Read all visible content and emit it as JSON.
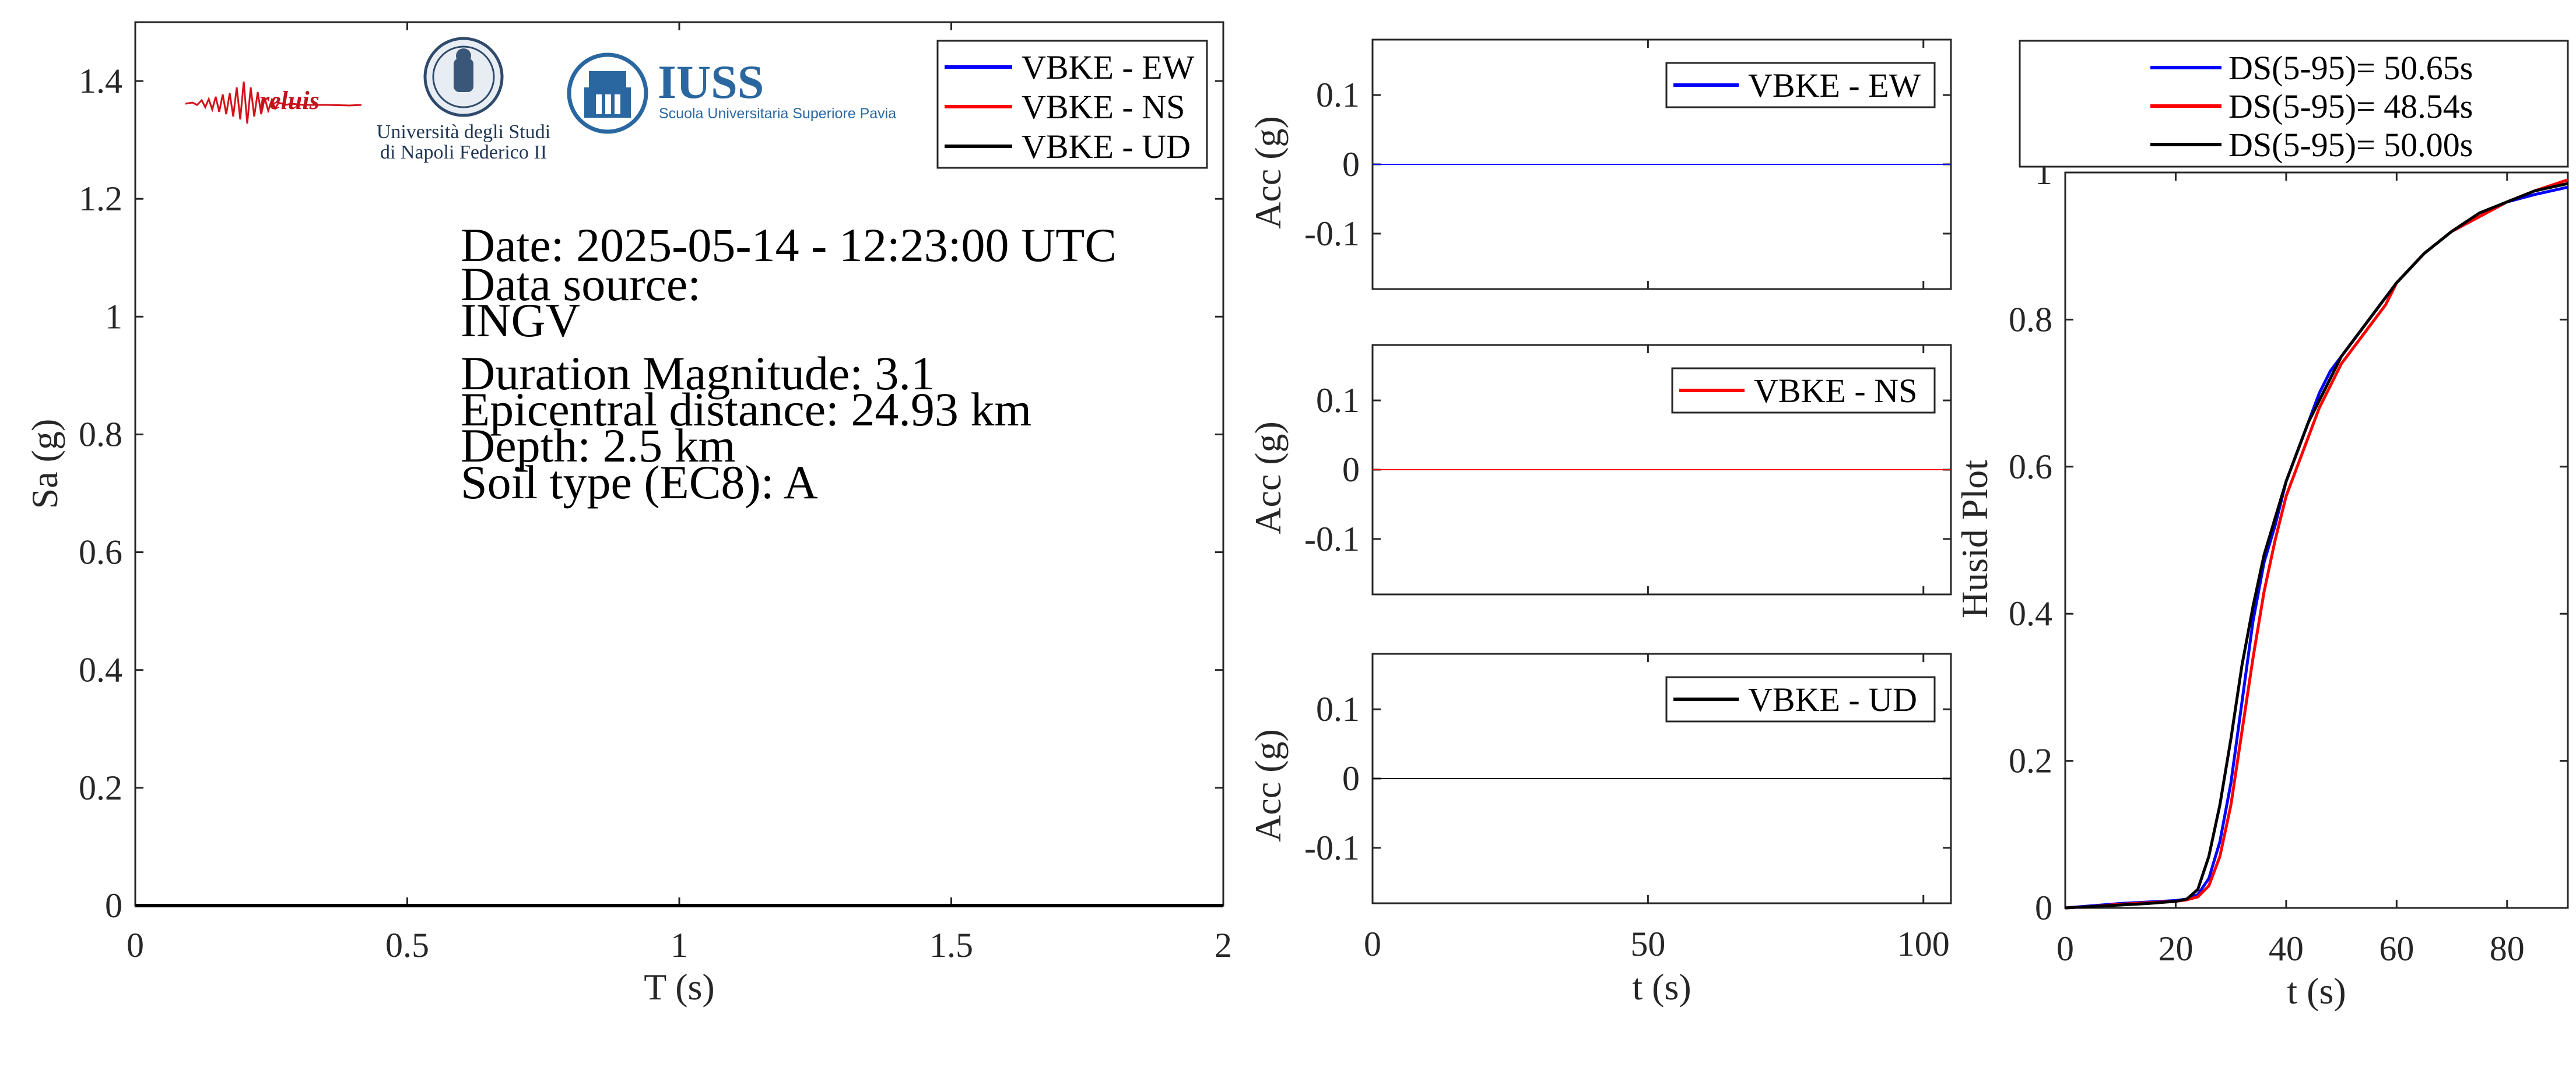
{
  "info": {
    "lines": [
      "Date: 2025-05-14 - 12:23:00 UTC",
      "Data source:",
      "INGV",
      "Duration Magnitude: 3.1",
      "Epicentral distance: 24.93 km",
      "Depth: 2.5 km",
      "Soil type (EC8): A"
    ]
  },
  "logos": {
    "reluis": "reluis",
    "unina_line1": "Università degli Studi",
    "unina_line2": "di Napoli Federico II",
    "iuss": "IUSS",
    "iuss_sub": "Scuola Universitaria Superiore Pavia"
  },
  "colors": {
    "ew": "#0000ff",
    "ns": "#ff0000",
    "ud": "#000000"
  },
  "chart_data": [
    {
      "id": "spectrum",
      "type": "line",
      "xlabel": "T (s)",
      "ylabel": "Sa (g)",
      "xlim": [
        0,
        2
      ],
      "ylim": [
        0,
        1.5
      ],
      "xticks": [
        0,
        0.5,
        1,
        1.5,
        2
      ],
      "yticks": [
        0,
        0.2,
        0.4,
        0.6,
        0.8,
        1,
        1.2,
        1.4
      ],
      "legend": "top-right",
      "series": [
        {
          "name": "VBKE - EW",
          "color": "#0000ff",
          "x": [
            0,
            2
          ],
          "y": [
            0,
            0
          ]
        },
        {
          "name": "VBKE - NS",
          "color": "#ff0000",
          "x": [
            0,
            2
          ],
          "y": [
            0,
            0
          ]
        },
        {
          "name": "VBKE - UD",
          "color": "#000000",
          "x": [
            0,
            2
          ],
          "y": [
            0,
            0
          ]
        }
      ]
    },
    {
      "id": "acc_ew",
      "type": "line",
      "ylabel": "Acc (g)",
      "xlim": [
        0,
        105
      ],
      "ylim": [
        -0.18,
        0.18
      ],
      "yticks": [
        -0.1,
        0,
        0.1
      ],
      "legend": "top-right",
      "series": [
        {
          "name": "VBKE - EW",
          "color": "#0000ff",
          "x": [
            0,
            105
          ],
          "y": [
            0,
            0
          ]
        }
      ]
    },
    {
      "id": "acc_ns",
      "type": "line",
      "ylabel": "Acc (g)",
      "xlim": [
        0,
        105
      ],
      "ylim": [
        -0.18,
        0.18
      ],
      "yticks": [
        -0.1,
        0,
        0.1
      ],
      "legend": "top-right",
      "series": [
        {
          "name": "VBKE - NS",
          "color": "#ff0000",
          "x": [
            0,
            105
          ],
          "y": [
            0,
            0
          ]
        }
      ]
    },
    {
      "id": "acc_ud",
      "type": "line",
      "xlabel": "t (s)",
      "ylabel": "Acc (g)",
      "xlim": [
        0,
        105
      ],
      "ylim": [
        -0.18,
        0.18
      ],
      "xticks": [
        0,
        50,
        100
      ],
      "yticks": [
        -0.1,
        0,
        0.1
      ],
      "legend": "top-right",
      "series": [
        {
          "name": "VBKE - UD",
          "color": "#000000",
          "x": [
            0,
            105
          ],
          "y": [
            0,
            0
          ]
        }
      ]
    },
    {
      "id": "husid",
      "type": "line",
      "xlabel": "t (s)",
      "ylabel": "Husid Plot",
      "xlim": [
        0,
        91
      ],
      "ylim": [
        0,
        1
      ],
      "xticks": [
        0,
        20,
        40,
        60,
        80
      ],
      "yticks": [
        0,
        0.2,
        0.4,
        0.6,
        0.8,
        1
      ],
      "legend": "top",
      "series": [
        {
          "name": "DS(5-95)= 50.65s",
          "color": "#0000ff",
          "x": [
            0,
            5,
            10,
            15,
            20,
            22,
            24,
            26,
            28,
            30,
            32,
            34,
            36,
            38,
            40,
            42,
            44,
            46,
            48,
            50,
            52,
            55,
            58,
            60,
            65,
            70,
            75,
            80,
            85,
            91
          ],
          "y": [
            0,
            0.003,
            0.006,
            0.008,
            0.01,
            0.012,
            0.018,
            0.04,
            0.09,
            0.17,
            0.28,
            0.39,
            0.47,
            0.52,
            0.58,
            0.62,
            0.66,
            0.7,
            0.73,
            0.75,
            0.77,
            0.8,
            0.83,
            0.85,
            0.89,
            0.92,
            0.94,
            0.96,
            0.97,
            0.98
          ]
        },
        {
          "name": "DS(5-95)= 48.54s",
          "color": "#ff0000",
          "x": [
            0,
            5,
            10,
            15,
            20,
            22,
            24,
            26,
            28,
            30,
            32,
            34,
            36,
            38,
            40,
            42,
            44,
            46,
            48,
            50,
            52,
            55,
            58,
            60,
            65,
            70,
            75,
            80,
            85,
            91
          ],
          "y": [
            0,
            0.002,
            0.005,
            0.007,
            0.009,
            0.011,
            0.015,
            0.03,
            0.07,
            0.14,
            0.24,
            0.34,
            0.43,
            0.5,
            0.56,
            0.6,
            0.64,
            0.68,
            0.71,
            0.74,
            0.76,
            0.79,
            0.82,
            0.85,
            0.89,
            0.92,
            0.94,
            0.96,
            0.975,
            0.99
          ]
        },
        {
          "name": "DS(5-95)= 50.00s",
          "color": "#000000",
          "x": [
            0,
            5,
            10,
            15,
            20,
            22,
            24,
            26,
            28,
            30,
            32,
            34,
            36,
            38,
            40,
            42,
            44,
            46,
            48,
            50,
            52,
            55,
            58,
            60,
            65,
            70,
            75,
            80,
            85,
            91
          ],
          "y": [
            0,
            0.002,
            0.004,
            0.006,
            0.009,
            0.012,
            0.025,
            0.07,
            0.14,
            0.23,
            0.33,
            0.41,
            0.48,
            0.53,
            0.58,
            0.62,
            0.66,
            0.69,
            0.72,
            0.75,
            0.77,
            0.8,
            0.83,
            0.85,
            0.89,
            0.92,
            0.945,
            0.96,
            0.975,
            0.985
          ]
        }
      ]
    }
  ]
}
